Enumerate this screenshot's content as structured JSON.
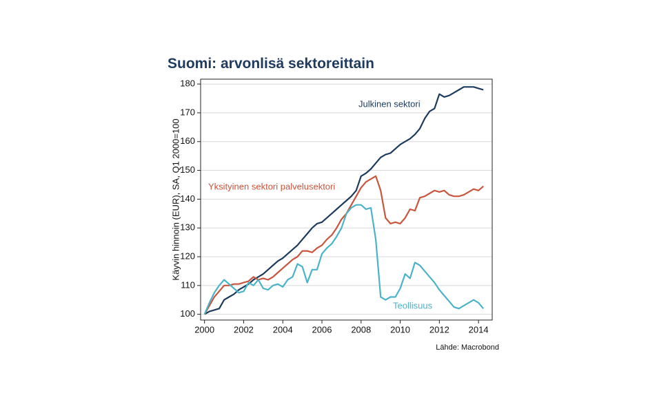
{
  "chart_data": {
    "type": "line",
    "title": "Suomi: arvonlisä sektoreittain",
    "y_label": "Käyvin hinnoin (EUR), SA, Q1 2000=100",
    "source": "Lähde: Macrobond",
    "x": [
      2000,
      2000.25,
      2000.5,
      2000.75,
      2001,
      2001.25,
      2001.5,
      2001.75,
      2002,
      2002.25,
      2002.5,
      2002.75,
      2003,
      2003.25,
      2003.5,
      2003.75,
      2004,
      2004.25,
      2004.5,
      2004.75,
      2005,
      2005.25,
      2005.5,
      2005.75,
      2006,
      2006.25,
      2006.5,
      2006.75,
      2007,
      2007.25,
      2007.5,
      2007.75,
      2008,
      2008.25,
      2008.5,
      2008.75,
      2009,
      2009.25,
      2009.5,
      2009.75,
      2010,
      2010.25,
      2010.5,
      2010.75,
      2011,
      2011.25,
      2011.5,
      2011.75,
      2012,
      2012.25,
      2012.5,
      2012.75,
      2013,
      2013.25,
      2013.5,
      2013.75,
      2014,
      2014.25
    ],
    "series": [
      {
        "name": "Julkinen sektori",
        "color": "#1b3a5c",
        "values": [
          100,
          101,
          101.5,
          102,
          105,
          106,
          107,
          108.5,
          109.5,
          110.5,
          112,
          113,
          114,
          115.5,
          117,
          118.5,
          119.5,
          121,
          122.5,
          124,
          126,
          128,
          130,
          131.5,
          132,
          133.5,
          135,
          136.5,
          138,
          139.5,
          141,
          143,
          148,
          149,
          150.5,
          152.5,
          154.5,
          155.5,
          156,
          157.5,
          159,
          160,
          161,
          162.5,
          164.5,
          168,
          170.5,
          171.5,
          176.5,
          175.5,
          176,
          177,
          178,
          179,
          179,
          179,
          178.5,
          178
        ]
      },
      {
        "name": "Yksityinen sektori palvelusektori",
        "color": "#c8553d",
        "values": [
          100,
          103,
          106,
          108,
          110,
          110,
          110.5,
          110.5,
          111,
          111.5,
          113,
          112,
          112.5,
          112,
          113,
          114.5,
          116,
          117.5,
          119,
          120,
          122,
          122,
          121.5,
          123,
          124,
          126,
          127.5,
          130,
          133,
          135,
          138,
          141,
          144,
          146,
          147,
          148,
          143,
          133.5,
          131.5,
          132,
          131.5,
          133.5,
          136.5,
          136,
          140.5,
          141,
          142,
          143,
          142.5,
          143,
          141.5,
          141,
          141,
          141.5,
          142.5,
          143.5,
          143,
          144.5
        ]
      },
      {
        "name": "Teollisuus",
        "color": "#4ab3c8",
        "values": [
          100,
          104,
          107.5,
          110,
          112,
          110.5,
          109,
          107.5,
          108,
          111,
          110,
          112,
          109,
          108.5,
          110,
          110.5,
          109.5,
          112,
          113,
          117.5,
          116.5,
          111,
          115.5,
          115.5,
          121,
          123,
          124.5,
          127,
          130,
          135,
          137,
          138,
          138,
          136.5,
          137,
          126,
          106,
          105,
          106,
          106,
          109,
          114,
          112.5,
          118,
          117,
          115,
          113,
          111,
          108.5,
          106.5,
          104.5,
          102.5,
          102,
          103,
          104,
          105,
          104,
          102
        ]
      }
    ],
    "xlim": [
      1999.8,
      2014.7
    ],
    "ylim": [
      98,
      181.7
    ],
    "xticks": [
      2000,
      2002,
      2004,
      2006,
      2008,
      2010,
      2012,
      2014
    ],
    "yticks": [
      100,
      110,
      120,
      130,
      140,
      150,
      160,
      170,
      180
    ],
    "grid": true
  }
}
